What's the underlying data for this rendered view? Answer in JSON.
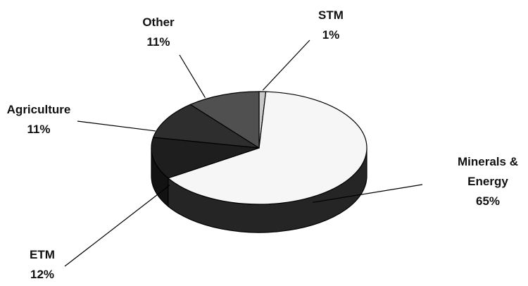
{
  "chart_data": {
    "type": "pie",
    "categories": [
      "STM",
      "Minerals & Energy",
      "ETM",
      "Agriculture",
      "Other"
    ],
    "values": [
      1,
      65,
      12,
      11,
      11
    ],
    "value_labels": [
      "1%",
      "65%",
      "12%",
      "11%",
      "11%"
    ],
    "colors": [
      "#c8c8c8",
      "#f6f6f6",
      "#1e1e1e",
      "#2e2e2e",
      "#505050"
    ],
    "three_d": true
  }
}
